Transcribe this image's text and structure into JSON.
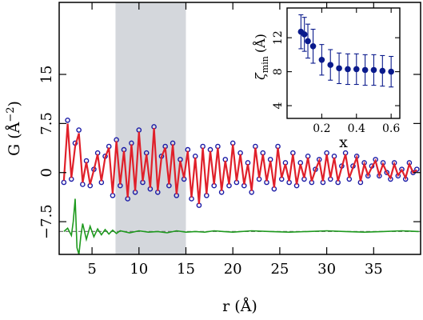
{
  "chart_data": [
    {
      "type": "line",
      "xlabel": "r (Å)",
      "ylabel": "G (Å",
      "ylabel_sup": "−2",
      "ylabel_close": ")",
      "xlim": [
        1.5,
        40
      ],
      "ylim": [
        -12.5,
        26
      ],
      "x_ticks": [
        5,
        10,
        15,
        20,
        25,
        30,
        35
      ],
      "x_tick_labels": [
        "5",
        "10",
        "15",
        "20",
        "25",
        "30",
        "35"
      ],
      "y_ticks": [
        -7.5,
        0,
        7.5,
        15
      ],
      "y_tick_labels": [
        "−7.5",
        "0",
        "7.5",
        "15"
      ],
      "shaded_region": [
        7.5,
        15
      ],
      "difference_offset": -9.0,
      "colors": {
        "data_points": "#1a1aa6",
        "fit_line": "#e0202a",
        "difference": "#1e9a1e",
        "shade": "#d4d7dc",
        "zero_line": "#777777"
      },
      "series": [
        {
          "role": "data",
          "x": [
            2.0,
            2.4,
            2.8,
            3.2,
            3.6,
            4.0,
            4.4,
            4.8,
            5.2,
            5.6,
            6.0,
            6.4,
            6.8,
            7.2,
            7.6,
            8.0,
            8.4,
            8.8,
            9.2,
            9.6,
            10.0,
            10.4,
            10.8,
            11.2,
            11.6,
            12.0,
            12.4,
            12.8,
            13.2,
            13.6,
            14.0,
            14.4,
            14.8,
            15.2,
            15.6,
            16.0,
            16.4,
            16.8,
            17.2,
            17.6,
            18.0,
            18.4,
            18.8,
            19.2,
            19.6,
            20.0,
            20.4,
            20.8,
            21.2,
            21.6,
            22.0,
            22.4,
            22.8,
            23.2,
            23.6,
            24.0,
            24.4,
            24.8,
            25.2,
            25.6,
            26.0,
            26.4,
            26.8,
            27.2,
            27.6,
            28.0,
            28.4,
            28.8,
            29.2,
            29.6,
            30.0,
            30.4,
            30.8,
            31.2,
            31.6,
            32.0,
            32.4,
            32.8,
            33.2,
            33.6,
            34.0,
            34.4,
            34.8,
            35.2,
            35.6,
            36.0,
            36.4,
            36.8,
            37.2,
            37.6,
            38.0,
            38.4,
            38.8,
            39.2,
            39.6
          ],
          "y": [
            -1.5,
            8.0,
            -1.0,
            4.5,
            6.5,
            -1.8,
            1.8,
            -2.0,
            0.5,
            3.0,
            -1.5,
            2.5,
            4.0,
            -3.5,
            5.0,
            -2.0,
            3.5,
            -4.0,
            4.5,
            -3.0,
            6.5,
            -1.5,
            3.0,
            -2.5,
            7.0,
            -3.0,
            2.5,
            4.0,
            -2.0,
            4.5,
            -3.5,
            2.0,
            -1.0,
            3.5,
            -4.0,
            2.5,
            -5.0,
            4.0,
            -3.5,
            3.5,
            -2.0,
            4.0,
            -3.0,
            2.0,
            -2.0,
            4.5,
            -1.5,
            3.0,
            -2.0,
            1.5,
            -3.0,
            4.0,
            -1.0,
            3.0,
            -1.5,
            2.0,
            -2.5,
            4.0,
            -1.0,
            1.5,
            -1.5,
            3.0,
            -2.0,
            1.5,
            -1.0,
            2.5,
            -1.5,
            0.5,
            2.0,
            -1.5,
            3.0,
            -1.0,
            2.5,
            -1.5,
            1.0,
            3.0,
            -1.0,
            1.0,
            2.5,
            -1.5,
            1.5,
            -0.5,
            1.0,
            2.0,
            -0.5,
            1.5,
            0.0,
            -1.0,
            1.5,
            -0.5,
            0.5,
            -1.0,
            1.5,
            0.0,
            0.5
          ]
        },
        {
          "role": "fit",
          "x": [
            2.0,
            2.4,
            2.8,
            3.2,
            3.6,
            4.0,
            4.4,
            4.8,
            5.2,
            5.6,
            6.0,
            6.4,
            6.8,
            7.2,
            7.6,
            8.0,
            8.4,
            8.8,
            9.2,
            9.6,
            10.0,
            10.4,
            10.8,
            11.2,
            11.6,
            12.0,
            12.4,
            12.8,
            13.2,
            13.6,
            14.0,
            14.4,
            14.8,
            15.2,
            15.6,
            16.0,
            16.4,
            16.8,
            17.2,
            17.6,
            18.0,
            18.4,
            18.8,
            19.2,
            19.6,
            20.0,
            20.4,
            20.8,
            21.2,
            21.6,
            22.0,
            22.4,
            22.8,
            23.2,
            23.6,
            24.0,
            24.4,
            24.8,
            25.2,
            25.6,
            26.0,
            26.4,
            26.8,
            27.2,
            27.6,
            28.0,
            28.4,
            28.8,
            29.2,
            29.6,
            30.0,
            30.4,
            30.8,
            31.2,
            31.6,
            32.0,
            32.4,
            32.8,
            33.2,
            33.6,
            34.0,
            34.4,
            34.8,
            35.2,
            35.6,
            36.0,
            36.4,
            36.8,
            37.2,
            37.6,
            38.0,
            38.4,
            38.8,
            39.2,
            39.6
          ],
          "y": [
            -1.2,
            7.5,
            -0.8,
            4.0,
            6.0,
            -1.5,
            1.6,
            -1.8,
            0.4,
            2.8,
            -1.3,
            2.3,
            3.8,
            -3.2,
            4.8,
            -1.8,
            3.3,
            -3.8,
            4.3,
            -2.8,
            6.2,
            -1.3,
            2.8,
            -2.3,
            6.8,
            -2.8,
            2.4,
            3.8,
            -1.8,
            4.3,
            -3.3,
            1.8,
            -0.8,
            3.3,
            -3.8,
            2.3,
            -4.8,
            3.8,
            -3.3,
            3.3,
            -1.8,
            3.8,
            -2.8,
            1.8,
            -1.8,
            4.3,
            -1.3,
            2.8,
            -1.8,
            1.3,
            -2.8,
            3.8,
            -0.8,
            2.8,
            -1.3,
            1.8,
            -2.3,
            3.8,
            -0.8,
            1.3,
            -1.3,
            2.8,
            -1.8,
            1.3,
            -0.8,
            2.3,
            -1.3,
            0.4,
            1.8,
            -1.3,
            2.8,
            -0.8,
            2.3,
            -1.3,
            0.8,
            2.8,
            -0.8,
            0.8,
            2.3,
            -1.3,
            1.3,
            -0.4,
            0.8,
            1.8,
            -0.4,
            1.3,
            0.0,
            -0.8,
            1.3,
            -0.4,
            0.4,
            -0.8,
            1.3,
            0.0,
            0.4
          ]
        },
        {
          "role": "difference",
          "x": [
            2.0,
            2.4,
            2.8,
            3.0,
            3.2,
            3.4,
            3.6,
            3.8,
            4.0,
            4.4,
            4.8,
            5.2,
            5.6,
            6.0,
            6.4,
            6.8,
            7.2,
            7.6,
            8.0,
            9.0,
            10.0,
            11.0,
            12.0,
            13.0,
            14.0,
            15.0,
            16.0,
            17.0,
            18.0,
            19.0,
            20.0,
            22.0,
            24.0,
            26.0,
            28.0,
            30.0,
            32.0,
            34.0,
            36.0,
            38.0,
            39.8
          ],
          "y": [
            -9.0,
            -8.5,
            -9.6,
            -7.5,
            -4.0,
            -11.5,
            -12.5,
            -9.8,
            -7.8,
            -10.2,
            -8.2,
            -9.8,
            -8.6,
            -9.5,
            -8.7,
            -9.4,
            -8.8,
            -9.3,
            -8.9,
            -9.2,
            -8.9,
            -9.1,
            -9.0,
            -9.2,
            -8.9,
            -9.1,
            -9.0,
            -9.1,
            -8.9,
            -9.0,
            -9.1,
            -8.9,
            -9.0,
            -9.1,
            -9.0,
            -8.9,
            -9.0,
            -9.1,
            -9.0,
            -8.9,
            -9.0
          ]
        }
      ]
    },
    {
      "type": "scatter",
      "xlabel": "x",
      "ylabel": "ζ",
      "ylabel_sub": "min",
      "ylabel_unit": "(Å)",
      "xlim": [
        0.0,
        0.65
      ],
      "ylim": [
        2.5,
        15.5
      ],
      "x_ticks": [
        0.2,
        0.4,
        0.6
      ],
      "x_tick_labels": [
        "0.2",
        "0.4",
        "0.6"
      ],
      "y_ticks": [
        4,
        8,
        12
      ],
      "y_tick_labels": [
        "4",
        "8",
        "12"
      ],
      "marker_color": "#0a1a8c",
      "series": [
        {
          "x": [
            0.08,
            0.1,
            0.12,
            0.15,
            0.2,
            0.25,
            0.3,
            0.35,
            0.4,
            0.45,
            0.5,
            0.55,
            0.6
          ],
          "y": [
            12.7,
            12.4,
            11.6,
            11.0,
            9.4,
            8.8,
            8.4,
            8.3,
            8.3,
            8.2,
            8.2,
            8.1,
            8.0
          ],
          "err": [
            2.0,
            2.0,
            2.0,
            2.0,
            1.8,
            1.8,
            1.8,
            1.8,
            1.8,
            1.8,
            1.8,
            1.8,
            1.8
          ]
        }
      ]
    }
  ]
}
